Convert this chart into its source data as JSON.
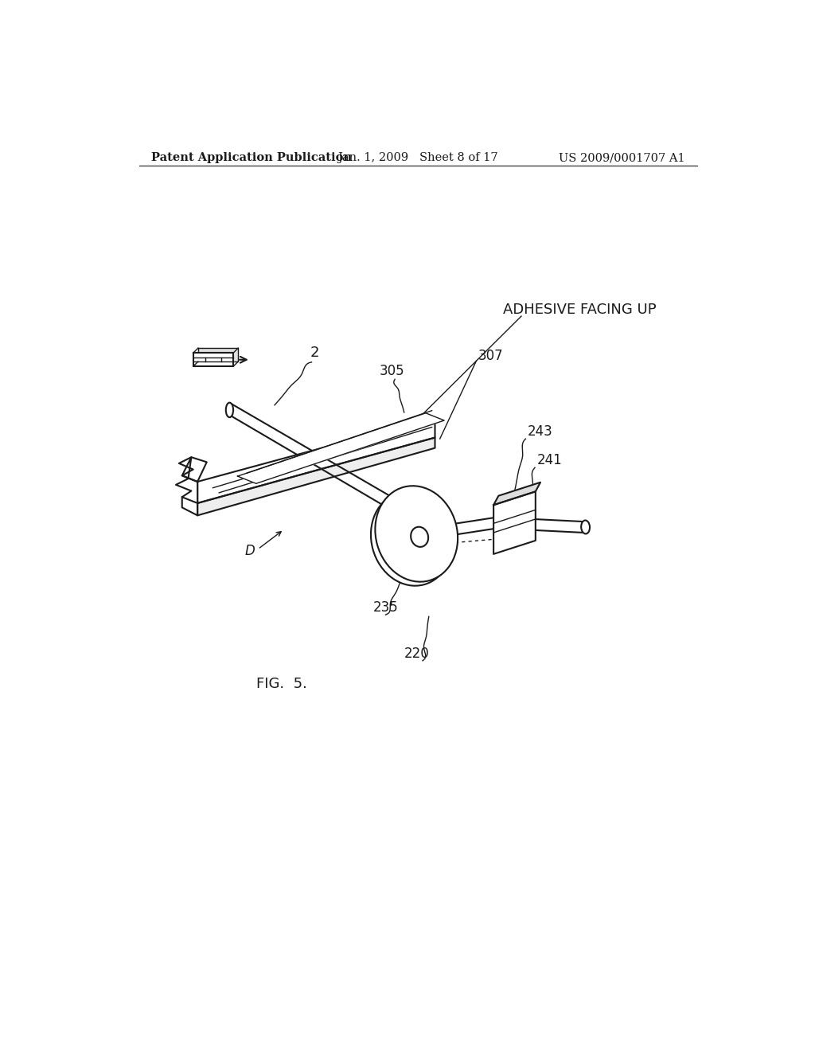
{
  "bg_color": "#ffffff",
  "line_color": "#1a1a1a",
  "header_left": "Patent Application Publication",
  "header_mid": "Jan. 1, 2009   Sheet 8 of 17",
  "header_right": "US 2009/0001707 A1",
  "fig_label": "FIG.  5.",
  "label_adhesive": "ADHESIVE FACING UP",
  "label_2": "2",
  "label_305": "305",
  "label_307": "307",
  "label_243": "243",
  "label_241": "241",
  "label_235": "235",
  "label_220": "220",
  "label_D": "D",
  "lw_main": 1.5,
  "lw_thin": 1.0
}
